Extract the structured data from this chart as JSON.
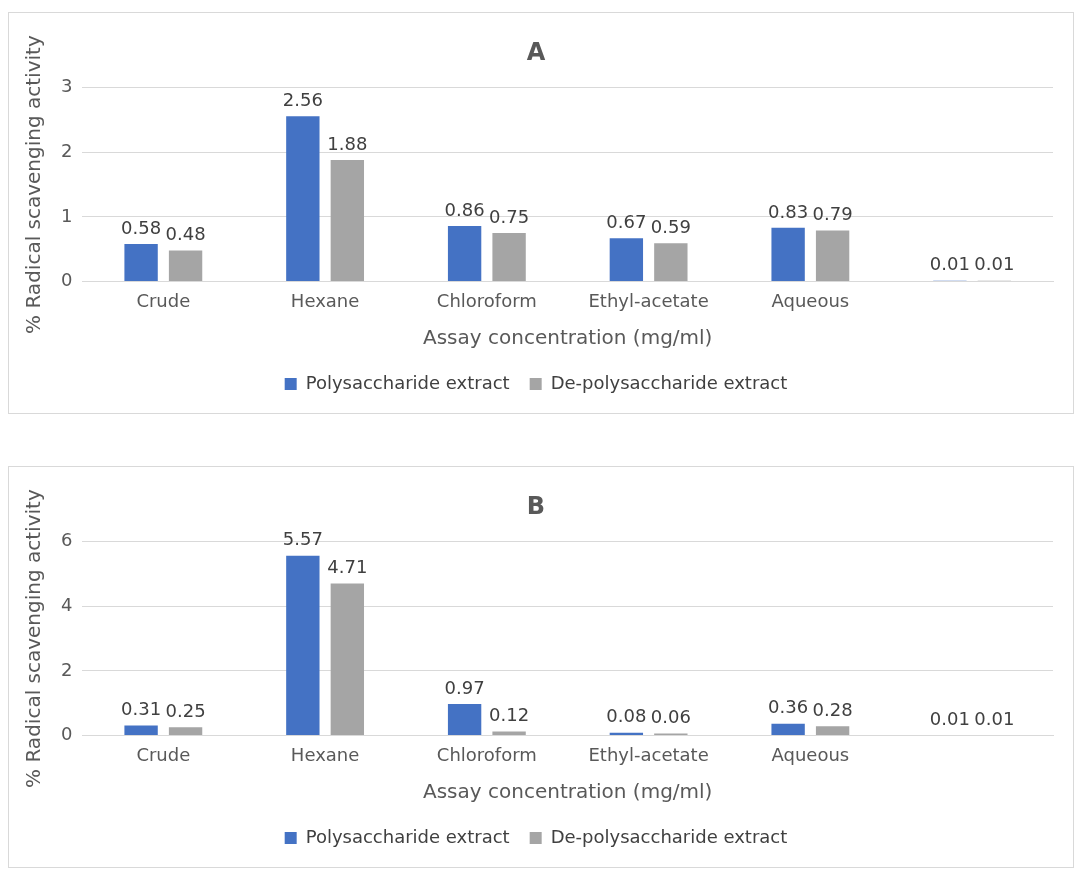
{
  "chart_data": [
    {
      "type": "bar",
      "title": "A",
      "xlabel": "Assay concentration (mg/ml)",
      "ylabel": "% Radical scavenging activity",
      "categories": [
        "Crude",
        "Hexane",
        "Chloroform",
        "Ethyl-acetate",
        "Aqueous",
        null
      ],
      "series": [
        {
          "name": "Polysaccharide extract",
          "color": "#4472c4",
          "values": [
            0.58,
            2.56,
            0.86,
            0.67,
            0.83,
            0.01
          ]
        },
        {
          "name": "De-polysaccharide extract",
          "color": "#a5a5a5",
          "values": [
            0.48,
            1.88,
            0.75,
            0.59,
            0.79,
            0.01
          ]
        }
      ],
      "ylim": [
        0,
        3
      ],
      "yticks": [
        0,
        1,
        2,
        3
      ],
      "grid": "y",
      "legend": "bottom",
      "data_labels": true
    },
    {
      "type": "bar",
      "title": "B",
      "xlabel": "Assay concentration (mg/ml)",
      "ylabel": "% Radical scavenging activity",
      "categories": [
        "Crude",
        "Hexane",
        "Chloroform",
        "Ethyl-acetate",
        "Aqueous",
        null
      ],
      "series": [
        {
          "name": "Polysaccharide extract",
          "color": "#4472c4",
          "values": [
            0.31,
            5.57,
            0.97,
            0.08,
            0.36,
            0.01
          ]
        },
        {
          "name": "De-polysaccharide extract",
          "color": "#a5a5a5",
          "values": [
            0.25,
            4.71,
            0.12,
            0.06,
            0.28,
            0.01
          ]
        }
      ],
      "ylim": [
        0,
        6
      ],
      "yticks": [
        0,
        2,
        4,
        6
      ],
      "grid": "y",
      "legend": "bottom",
      "data_labels": true
    }
  ]
}
